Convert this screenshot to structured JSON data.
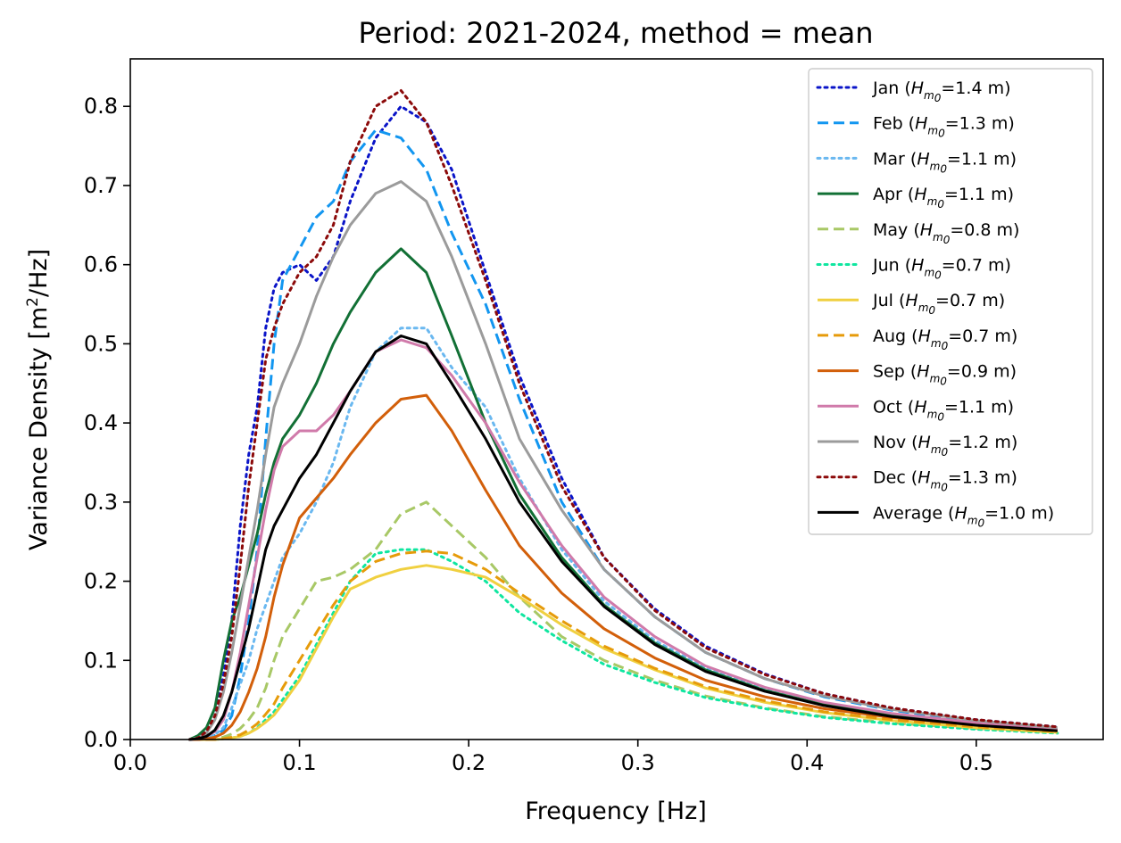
{
  "chart_data": {
    "type": "line",
    "title": "Period: 2021-2024, method = mean",
    "xlabel": "Frequency [Hz]",
    "ylabel": "Variance Density [m",
    "ylabel_sup": "2",
    "ylabel_tail": "/Hz]",
    "xlim": [
      0.0,
      0.575
    ],
    "ylim": [
      0.0,
      0.86
    ],
    "xticks": [
      0.0,
      0.1,
      0.2,
      0.3,
      0.4,
      0.5
    ],
    "xtick_labels": [
      "0.0",
      "0.1",
      "0.2",
      "0.3",
      "0.4",
      "0.5"
    ],
    "yticks": [
      0.0,
      0.1,
      0.2,
      0.3,
      0.4,
      0.5,
      0.6,
      0.7,
      0.8
    ],
    "ytick_labels": [
      "0.0",
      "0.1",
      "0.2",
      "0.3",
      "0.4",
      "0.5",
      "0.6",
      "0.7",
      "0.8"
    ],
    "grid": false,
    "legend_position": "top-right",
    "legend_symbol": "H",
    "legend_subscript": "m0",
    "x": [
      0.035,
      0.04,
      0.045,
      0.05,
      0.055,
      0.06,
      0.065,
      0.07,
      0.075,
      0.08,
      0.085,
      0.09,
      0.1,
      0.11,
      0.12,
      0.13,
      0.145,
      0.16,
      0.175,
      0.19,
      0.21,
      0.23,
      0.255,
      0.28,
      0.31,
      0.34,
      0.375,
      0.41,
      0.45,
      0.5,
      0.548
    ],
    "series": [
      {
        "name": "Jan",
        "hm0": "1.4 m",
        "color": "#0a14c8",
        "dash": "dot",
        "width": 3,
        "values": [
          0,
          0.002,
          0.01,
          0.03,
          0.08,
          0.15,
          0.27,
          0.36,
          0.42,
          0.52,
          0.57,
          0.59,
          0.6,
          0.58,
          0.61,
          0.68,
          0.76,
          0.8,
          0.78,
          0.72,
          0.59,
          0.46,
          0.33,
          0.23,
          0.165,
          0.118,
          0.083,
          0.058,
          0.04,
          0.025,
          0.016
        ]
      },
      {
        "name": "Feb",
        "hm0": "1.3 m",
        "color": "#1296f0",
        "dash": "dash",
        "width": 3,
        "values": [
          0,
          0,
          0.002,
          0.005,
          0.012,
          0.03,
          0.08,
          0.15,
          0.24,
          0.38,
          0.5,
          0.58,
          0.62,
          0.66,
          0.68,
          0.73,
          0.77,
          0.76,
          0.72,
          0.64,
          0.55,
          0.43,
          0.3,
          0.215,
          0.155,
          0.11,
          0.077,
          0.054,
          0.037,
          0.023,
          0.015
        ]
      },
      {
        "name": "Mar",
        "hm0": "1.1 m",
        "color": "#6ab8f0",
        "dash": "dot",
        "width": 3,
        "values": [
          0,
          0,
          0.002,
          0.006,
          0.015,
          0.04,
          0.07,
          0.1,
          0.14,
          0.17,
          0.2,
          0.23,
          0.26,
          0.3,
          0.35,
          0.42,
          0.49,
          0.52,
          0.52,
          0.47,
          0.42,
          0.33,
          0.24,
          0.175,
          0.125,
          0.09,
          0.063,
          0.044,
          0.031,
          0.02,
          0.013
        ]
      },
      {
        "name": "Apr",
        "hm0": "1.1 m",
        "color": "#127035",
        "dash": "solid",
        "width": 3,
        "values": [
          0,
          0.005,
          0.015,
          0.04,
          0.1,
          0.15,
          0.18,
          0.22,
          0.26,
          0.31,
          0.35,
          0.38,
          0.41,
          0.45,
          0.5,
          0.54,
          0.59,
          0.62,
          0.59,
          0.51,
          0.4,
          0.31,
          0.23,
          0.17,
          0.122,
          0.088,
          0.062,
          0.044,
          0.03,
          0.019,
          0.012
        ]
      },
      {
        "name": "May",
        "hm0": "0.8 m",
        "color": "#a8c866",
        "dash": "dash",
        "width": 3,
        "values": [
          0,
          0,
          0,
          0.001,
          0.003,
          0.007,
          0.014,
          0.025,
          0.04,
          0.065,
          0.1,
          0.13,
          0.165,
          0.2,
          0.205,
          0.215,
          0.24,
          0.285,
          0.3,
          0.27,
          0.23,
          0.18,
          0.13,
          0.1,
          0.075,
          0.055,
          0.04,
          0.029,
          0.021,
          0.014,
          0.009
        ]
      },
      {
        "name": "Jun",
        "hm0": "0.7 m",
        "color": "#0fe6a0",
        "dash": "dot",
        "width": 3,
        "values": [
          0,
          0,
          0,
          0,
          0.001,
          0.002,
          0.004,
          0.008,
          0.015,
          0.025,
          0.035,
          0.05,
          0.08,
          0.12,
          0.16,
          0.2,
          0.235,
          0.24,
          0.24,
          0.225,
          0.2,
          0.16,
          0.125,
          0.095,
          0.072,
          0.053,
          0.039,
          0.028,
          0.02,
          0.013,
          0.008
        ]
      },
      {
        "name": "Jul",
        "hm0": "0.7 m",
        "color": "#f0d040",
        "dash": "solid",
        "width": 3,
        "values": [
          0,
          0,
          0,
          0,
          0.001,
          0.002,
          0.004,
          0.008,
          0.014,
          0.022,
          0.031,
          0.045,
          0.075,
          0.115,
          0.155,
          0.19,
          0.205,
          0.215,
          0.22,
          0.215,
          0.205,
          0.18,
          0.145,
          0.115,
          0.088,
          0.065,
          0.047,
          0.034,
          0.024,
          0.015,
          0.009
        ]
      },
      {
        "name": "Aug",
        "hm0": "0.7 m",
        "color": "#e69b0a",
        "dash": "dash",
        "width": 3,
        "values": [
          0,
          0,
          0,
          0,
          0.001,
          0.003,
          0.006,
          0.012,
          0.02,
          0.032,
          0.045,
          0.065,
          0.1,
          0.135,
          0.17,
          0.2,
          0.225,
          0.235,
          0.238,
          0.235,
          0.215,
          0.185,
          0.15,
          0.118,
          0.09,
          0.067,
          0.049,
          0.035,
          0.025,
          0.016,
          0.01
        ]
      },
      {
        "name": "Sep",
        "hm0": "0.9 m",
        "color": "#d25f0a",
        "dash": "solid",
        "width": 3,
        "values": [
          0,
          0,
          0.001,
          0.003,
          0.008,
          0.018,
          0.035,
          0.06,
          0.09,
          0.13,
          0.18,
          0.22,
          0.28,
          0.305,
          0.33,
          0.36,
          0.4,
          0.43,
          0.435,
          0.39,
          0.315,
          0.245,
          0.185,
          0.14,
          0.103,
          0.075,
          0.054,
          0.039,
          0.028,
          0.018,
          0.011
        ]
      },
      {
        "name": "Oct",
        "hm0": "1.1 m",
        "color": "#d07aaa",
        "dash": "solid",
        "width": 3,
        "values": [
          0,
          0.001,
          0.004,
          0.01,
          0.025,
          0.06,
          0.11,
          0.17,
          0.23,
          0.29,
          0.34,
          0.37,
          0.39,
          0.39,
          0.41,
          0.44,
          0.49,
          0.505,
          0.495,
          0.46,
          0.4,
          0.325,
          0.245,
          0.18,
          0.13,
          0.093,
          0.066,
          0.047,
          0.033,
          0.021,
          0.013
        ]
      },
      {
        "name": "Nov",
        "hm0": "1.2 m",
        "color": "#9b9b9b",
        "dash": "solid",
        "width": 3,
        "values": [
          0,
          0.002,
          0.008,
          0.025,
          0.06,
          0.11,
          0.17,
          0.23,
          0.29,
          0.36,
          0.42,
          0.45,
          0.5,
          0.56,
          0.61,
          0.65,
          0.69,
          0.705,
          0.68,
          0.61,
          0.5,
          0.38,
          0.29,
          0.215,
          0.155,
          0.11,
          0.077,
          0.055,
          0.038,
          0.024,
          0.015
        ]
      },
      {
        "name": "Dec",
        "hm0": "1.3 m",
        "color": "#8c0a0a",
        "dash": "dot",
        "width": 3,
        "values": [
          0,
          0.002,
          0.01,
          0.03,
          0.07,
          0.13,
          0.22,
          0.32,
          0.4,
          0.48,
          0.52,
          0.55,
          0.59,
          0.61,
          0.65,
          0.73,
          0.8,
          0.82,
          0.78,
          0.7,
          0.58,
          0.45,
          0.32,
          0.23,
          0.163,
          0.116,
          0.082,
          0.058,
          0.04,
          0.025,
          0.016
        ]
      },
      {
        "name": "Average",
        "hm0": "1.0 m",
        "color": "#000000",
        "dash": "solid",
        "width": 3,
        "values": [
          0,
          0.001,
          0.004,
          0.012,
          0.03,
          0.06,
          0.1,
          0.14,
          0.19,
          0.24,
          0.27,
          0.29,
          0.33,
          0.36,
          0.4,
          0.44,
          0.49,
          0.51,
          0.5,
          0.45,
          0.38,
          0.3,
          0.225,
          0.168,
          0.12,
          0.086,
          0.061,
          0.043,
          0.029,
          0.018,
          0.011
        ]
      }
    ]
  }
}
